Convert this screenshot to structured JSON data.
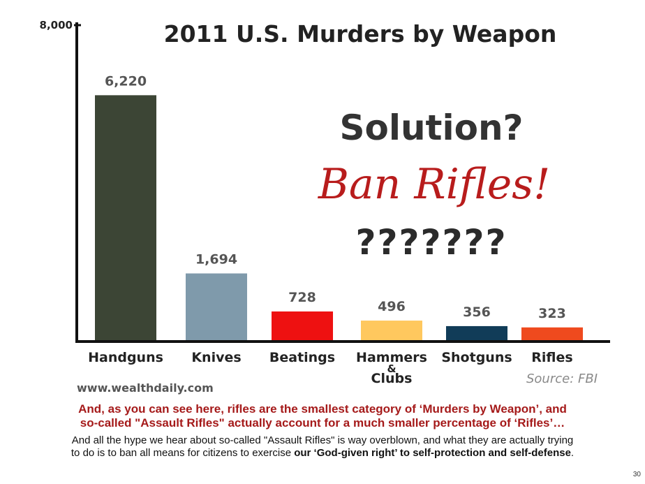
{
  "chart_data": {
    "type": "bar",
    "title": "2011 U.S. Murders by Weapon",
    "categories": [
      "Handguns",
      "Knives",
      "Beatings",
      "Hammers & Clubs",
      "Shotguns",
      "Rifles"
    ],
    "values": [
      6220,
      1694,
      728,
      496,
      356,
      323
    ],
    "value_labels": [
      "6,220",
      "1,694",
      "728",
      "496",
      "356",
      "323"
    ],
    "colors": [
      "#3c4535",
      "#7f9aab",
      "#ee1111",
      "#ffc85e",
      "#113c58",
      "#ef4a1e"
    ],
    "ylim": [
      0,
      8000
    ],
    "yticks": [
      "8,000"
    ],
    "grid": false,
    "legend": "none"
  },
  "overlay": {
    "solution": "Solution?",
    "ban": "Ban Rifles!",
    "question_marks": "???????"
  },
  "website": "www.wealthdaily.com",
  "source": "Source: FBI",
  "caption": {
    "red_line1": "And, as you can see here, rifles are the smallest category of ‘Murders by Weapon’, and",
    "red_line2": "so-called \"Assault Rifles\" actually account for a much smaller percentage of ‘Rifles’…",
    "black_line1": "And all the hype we hear about so-called \"Assault Rifles\" is way overblown, and what they are actually trying",
    "black_line2_pre": "to do is to ban all means for citizens to exercise ",
    "black_line2_bold": "our ‘God-given right’ to self-protection and self-defense",
    "black_line2_post": "."
  },
  "page_number": "30"
}
